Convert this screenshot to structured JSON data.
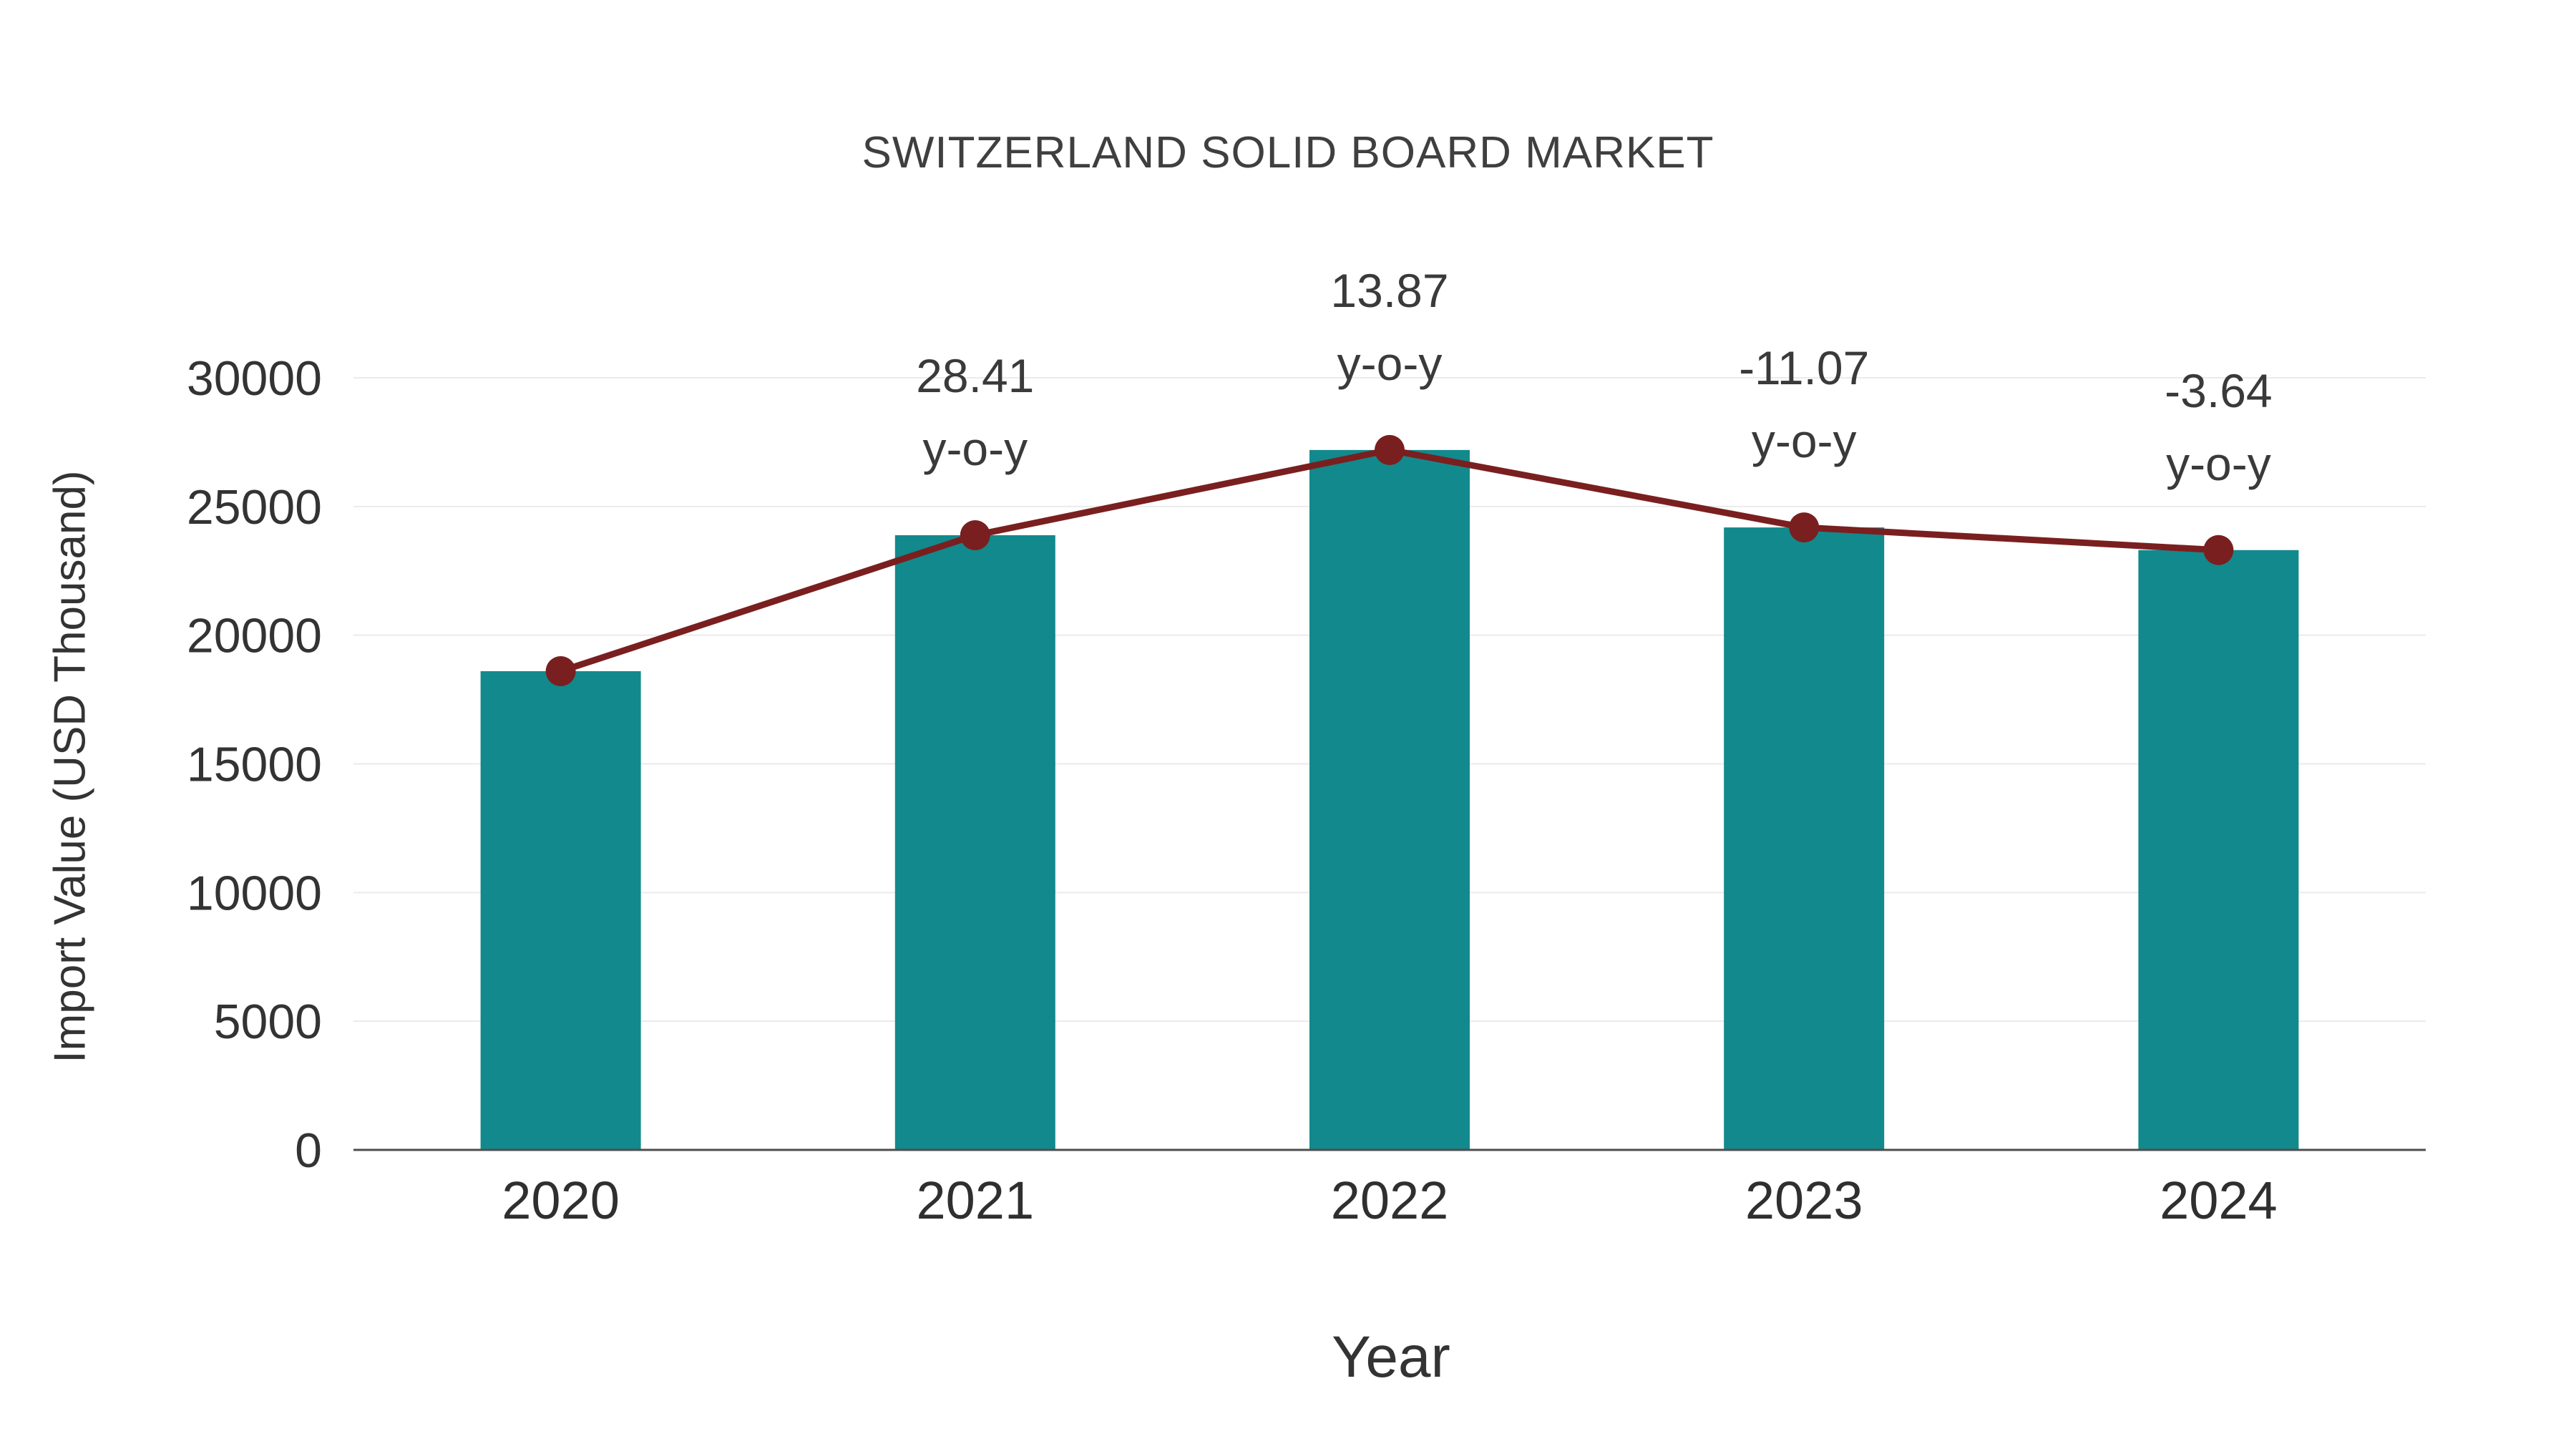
{
  "title": "SWITZERLAND SOLID BOARD MARKET",
  "chart_data": {
    "type": "bar",
    "title": "SWITZERLAND SOLID BOARD MARKET",
    "xlabel": "Year",
    "ylabel": "Import Value (USD Thousand)",
    "categories": [
      "2020",
      "2021",
      "2022",
      "2023",
      "2024"
    ],
    "series": [
      {
        "name": "Import Value (USD Thousand)",
        "type": "bar",
        "values": [
          18600,
          23884,
          27196,
          24186,
          23306
        ],
        "color": "#12898c"
      },
      {
        "name": "y-o-y growth line",
        "type": "line",
        "values": [
          18600,
          23884,
          27196,
          24186,
          23306
        ],
        "color": "#7a1f1f"
      }
    ],
    "annotations": [
      {
        "category": "2021",
        "label": "28.41",
        "sublabel": "y-o-y"
      },
      {
        "category": "2022",
        "label": "13.87",
        "sublabel": "y-o-y"
      },
      {
        "category": "2023",
        "label": "-11.07",
        "sublabel": "y-o-y"
      },
      {
        "category": "2024",
        "label": "-3.64",
        "sublabel": "y-o-y"
      }
    ],
    "yticks": [
      0,
      5000,
      10000,
      15000,
      20000,
      25000,
      30000
    ],
    "ylim": [
      0,
      30000
    ],
    "grid": true,
    "legend": "none",
    "colors": {
      "bar": "#12898c",
      "line": "#7a1f1f",
      "grid": "#ebebeb",
      "axis": "#4d4d4d",
      "text": "#333333"
    }
  }
}
